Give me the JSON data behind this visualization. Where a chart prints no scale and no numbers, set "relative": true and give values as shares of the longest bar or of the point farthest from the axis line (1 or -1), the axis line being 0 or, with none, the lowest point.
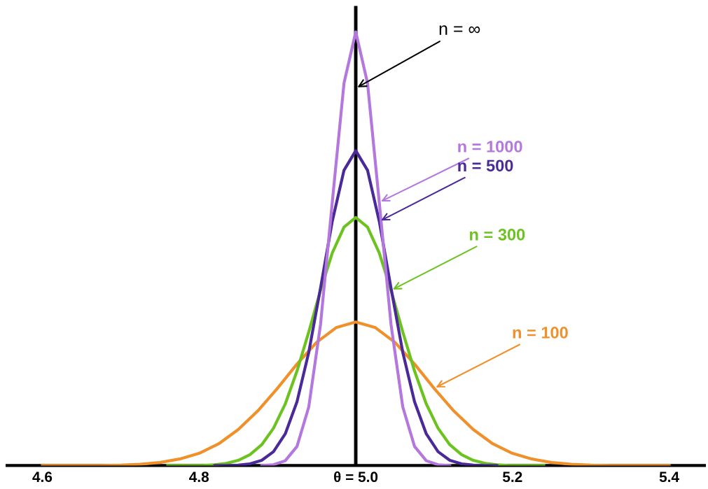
{
  "chart_data": {
    "type": "line",
    "relative": true,
    "grid": false,
    "legend": false,
    "marker": "none",
    "line_style": "solid",
    "xlim": [
      4.555,
      5.445
    ],
    "xticks": [
      4.6,
      4.8,
      {
        "value": 5.0,
        "label": "θ = 5.0"
      },
      5.2,
      5.4
    ],
    "series": [
      {
        "color": "#b377de",
        "x": [
          4.88,
          4.895,
          4.91,
          4.925,
          4.94,
          4.955,
          4.97,
          4.985,
          5,
          5.015,
          5.03,
          5.045,
          5.06,
          5.075,
          5.09,
          5.105,
          5.12
        ],
        "values": [
          0,
          0.002,
          0.011,
          0.044,
          0.135,
          0.325,
          0.607,
          0.882,
          1,
          0.882,
          0.607,
          0.325,
          0.135,
          0.044,
          0.011,
          0.002,
          0
        ]
      },
      {
        "color": "#4a2a98",
        "x": [
          4.82,
          4.835,
          4.85,
          4.865,
          4.88,
          4.895,
          4.91,
          4.925,
          4.94,
          4.955,
          4.97,
          4.985,
          5,
          5.015,
          5.03,
          5.045,
          5.06,
          5.075,
          5.09,
          5.105,
          5.12,
          5.135,
          5.15,
          5.165,
          5.18
        ],
        "values": [
          0,
          0,
          0.001,
          0.004,
          0.012,
          0.032,
          0.073,
          0.147,
          0.261,
          0.409,
          0.563,
          0.681,
          0.726,
          0.681,
          0.563,
          0.409,
          0.261,
          0.147,
          0.073,
          0.032,
          0.012,
          0.004,
          0.001,
          0,
          0
        ]
      },
      {
        "color": "#6cc21e",
        "x": [
          4.76,
          4.775,
          4.79,
          4.805,
          4.82,
          4.835,
          4.85,
          4.865,
          4.88,
          4.895,
          4.91,
          4.925,
          4.94,
          4.955,
          4.97,
          4.985,
          5,
          5.015,
          5.03,
          5.045,
          5.06,
          5.075,
          5.09,
          5.105,
          5.12,
          5.135,
          5.15,
          5.165,
          5.18,
          5.195,
          5.21,
          5.225,
          5.24
        ],
        "values": [
          0,
          0,
          0,
          0,
          0.002,
          0.005,
          0.012,
          0.025,
          0.048,
          0.086,
          0.142,
          0.218,
          0.308,
          0.404,
          0.49,
          0.55,
          0.572,
          0.55,
          0.49,
          0.404,
          0.308,
          0.218,
          0.142,
          0.086,
          0.048,
          0.025,
          0.012,
          0.005,
          0.002,
          0,
          0,
          0,
          0
        ]
      },
      {
        "color": "#f0902a",
        "x": [
          4.6,
          4.625,
          4.65,
          4.675,
          4.7,
          4.725,
          4.75,
          4.775,
          4.8,
          4.825,
          4.85,
          4.875,
          4.9,
          4.925,
          4.95,
          4.975,
          5,
          5.025,
          5.05,
          5.075,
          5.1,
          5.125,
          5.15,
          5.175,
          5.2,
          5.225,
          5.25,
          5.275,
          5.3,
          5.325,
          5.35,
          5.375,
          5.4
        ],
        "values": [
          0,
          0,
          0,
          0,
          0.001,
          0.003,
          0.007,
          0.015,
          0.028,
          0.05,
          0.083,
          0.126,
          0.178,
          0.234,
          0.284,
          0.318,
          0.331,
          0.318,
          0.284,
          0.234,
          0.178,
          0.126,
          0.083,
          0.05,
          0.028,
          0.015,
          0.007,
          0.003,
          0.001,
          0,
          0,
          0,
          0
        ]
      }
    ],
    "ref_lines": [
      {
        "axis": "x",
        "value": 5.0,
        "label": "n = ∞",
        "color": "#000000",
        "line_style": "solid"
      }
    ],
    "annotations": [
      {
        "text": "n = 1000",
        "x": 5.03,
        "y": 0.607
      },
      {
        "text": "n = 500",
        "x": 5.03,
        "y": 0.563
      },
      {
        "text": "n = 300",
        "x": 5.045,
        "y": 0.404
      },
      {
        "text": "n = 100",
        "x": 5.1,
        "y": 0.178
      }
    ]
  }
}
